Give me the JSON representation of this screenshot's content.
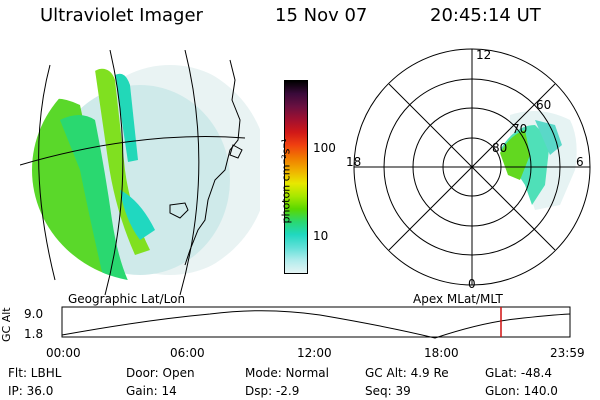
{
  "header": {
    "title": "Ultraviolet Imager",
    "date": "15 Nov 07",
    "time": "20:45:14 UT"
  },
  "colorbar": {
    "label": "photon cm⁻²s⁻¹",
    "ticks": [
      "100",
      "10"
    ],
    "colors": [
      "#000000",
      "#3a0a3a",
      "#6a1040",
      "#a01030",
      "#d01818",
      "#f04010",
      "#f07a00",
      "#f0b000",
      "#e8e800",
      "#a8e800",
      "#5ad800",
      "#2ad870",
      "#20d8c0",
      "#60e0d8",
      "#b0ecec",
      "#e4f4f4"
    ]
  },
  "map_labels": {
    "left_caption": "Geographic Lat/Lon",
    "right_caption": "Apex MLat/MLT"
  },
  "polar": {
    "mlt_labels": [
      "12",
      "18",
      "6",
      "0"
    ],
    "lat_labels": [
      "60",
      "70",
      "80"
    ]
  },
  "altitude_plot": {
    "ylabel": "GC Alt",
    "y_ticks": [
      "9.0",
      "1.8"
    ],
    "x_ticks": [
      "00:00",
      "06:00",
      "12:00",
      "18:00",
      "23:59"
    ]
  },
  "info": {
    "filter": "Flt: LBHL",
    "ip": "IP: 36.0",
    "door": "Door: Open",
    "gain": "Gain: 14",
    "mode": "Mode: Normal",
    "dsp": "Dsp:    -2.9",
    "gc_alt": "GC Alt: 4.9 Re",
    "seq": "Seq: 39",
    "glat": "GLat: -48.4",
    "glon": "GLon: 140.0"
  }
}
